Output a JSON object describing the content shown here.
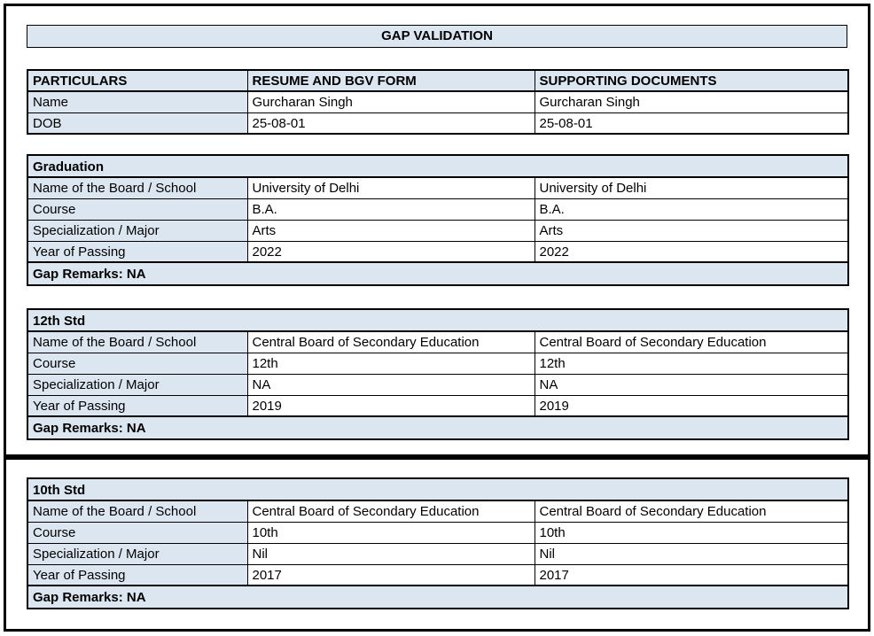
{
  "colors": {
    "fill": "#dce6f1",
    "border": "#000000",
    "page_bg": "#ffffff",
    "text": "#000000"
  },
  "title": "GAP VALIDATION",
  "particulars_table": {
    "headers": [
      "PARTICULARS",
      "RESUME AND BGV FORM",
      "SUPPORTING DOCUMENTS"
    ],
    "rows": [
      [
        "Name",
        "Gurcharan Singh",
        "Gurcharan Singh"
      ],
      [
        "DOB",
        "25-08-01",
        "25-08-01"
      ]
    ]
  },
  "sections": [
    {
      "title": "Graduation",
      "rows": [
        [
          "Name of the Board / School",
          "University of Delhi",
          "University of Delhi"
        ],
        [
          "Course",
          "B.A.",
          "B.A."
        ],
        [
          "Specialization / Major",
          "Arts",
          "Arts"
        ],
        [
          "Year of Passing",
          "2022",
          "2022"
        ]
      ],
      "gap_remarks": "Gap Remarks: NA"
    },
    {
      "title": "12th Std",
      "rows": [
        [
          "Name of the Board / School",
          "Central Board of Secondary Education",
          "Central Board of Secondary Education"
        ],
        [
          "Course",
          "12th",
          "12th"
        ],
        [
          "Specialization / Major",
          "NA",
          "NA"
        ],
        [
          "Year of Passing",
          "2019",
          "2019"
        ]
      ],
      "gap_remarks": "Gap Remarks: NA"
    },
    {
      "title": "10th Std",
      "rows": [
        [
          "Name of the Board / School",
          "Central Board of Secondary Education",
          "Central Board of Secondary Education"
        ],
        [
          "Course",
          "10th",
          "10th"
        ],
        [
          "Specialization / Major",
          "Nil",
          "Nil"
        ],
        [
          "Year of Passing",
          "2017",
          "2017"
        ]
      ],
      "gap_remarks": "Gap Remarks: NA"
    }
  ]
}
